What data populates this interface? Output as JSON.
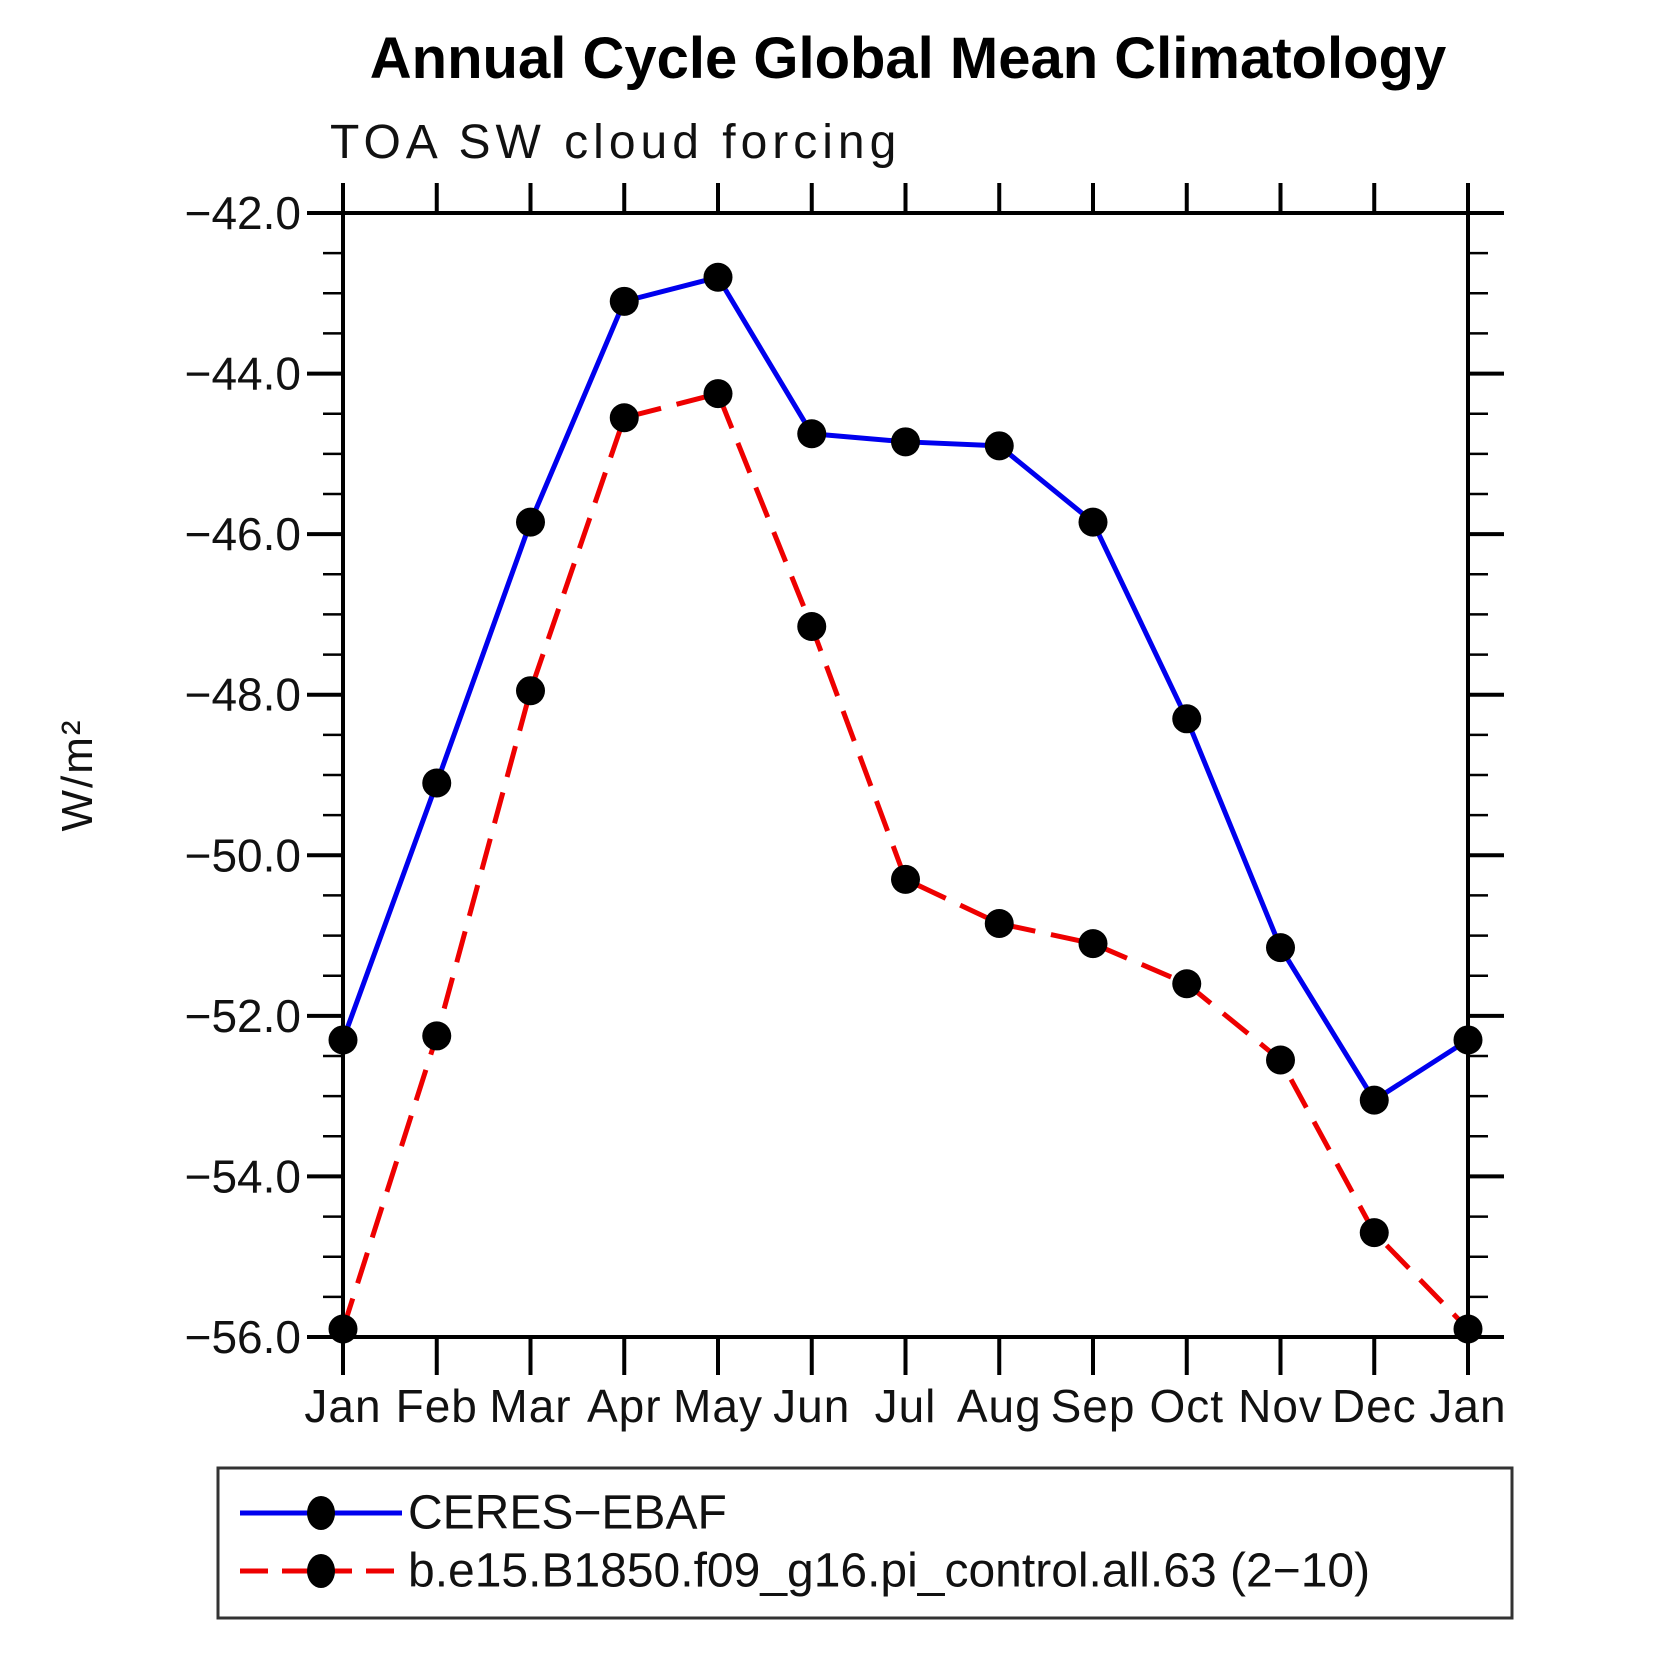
{
  "title": "Annual Cycle Global Mean Climatology",
  "subtitle": "TOA SW cloud forcing",
  "chart_data": {
    "type": "line",
    "categories": [
      "Jan",
      "Feb",
      "Mar",
      "Apr",
      "May",
      "Jun",
      "Jul",
      "Aug",
      "Sep",
      "Oct",
      "Nov",
      "Dec",
      "Jan"
    ],
    "series": [
      {
        "name": "CERES−EBAF",
        "color": "#0000ee",
        "line_style": "solid",
        "marker": "black-dot",
        "values": [
          -52.3,
          -49.1,
          -45.85,
          -43.1,
          -42.8,
          -44.75,
          -44.85,
          -44.9,
          -45.85,
          -48.3,
          -51.15,
          -53.05,
          -52.3
        ]
      },
      {
        "name": "b.e15.B1850.f09_g16.pi_control.all.63 (2−10)",
        "color": "#ee0000",
        "line_style": "dashed",
        "marker": "black-dot",
        "values": [
          -55.9,
          -52.25,
          -47.95,
          -44.55,
          -44.25,
          -47.15,
          -50.3,
          -50.85,
          -51.1,
          -51.6,
          -52.55,
          -54.7,
          -55.9
        ]
      }
    ],
    "xlabel": "",
    "ylabel": "W/m²",
    "ylim": [
      -56.0,
      -42.0
    ],
    "ytick_step": 2.0,
    "yminor_step": 0.5,
    "ytick_labels": [
      "−42.0",
      "−44.0",
      "−46.0",
      "−48.0",
      "−50.0",
      "−52.0",
      "−54.0",
      "−56.0"
    ],
    "grid": false,
    "legend_position": "bottom",
    "marker_color": "#000000"
  }
}
